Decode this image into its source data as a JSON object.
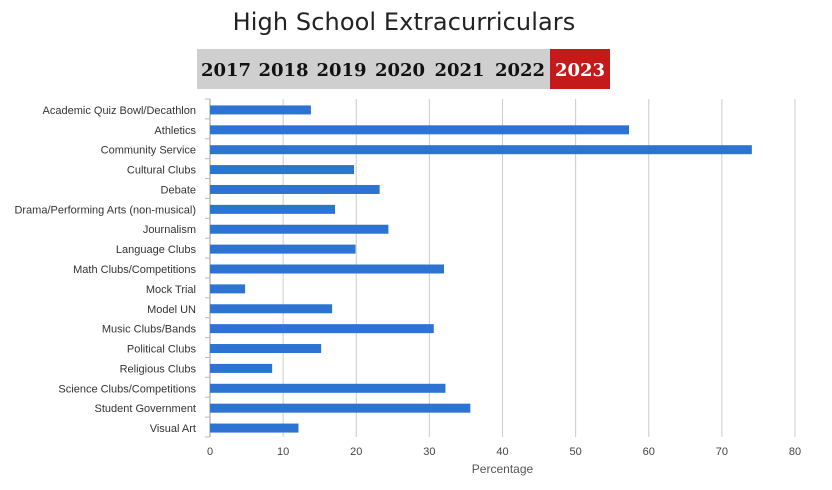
{
  "chart_data": {
    "type": "bar",
    "orientation": "horizontal",
    "title": "High School Extracurriculars",
    "xlabel": "Percentage",
    "ylabel": "",
    "xlim": [
      0,
      80
    ],
    "xticks": [
      0,
      10,
      20,
      30,
      40,
      50,
      60,
      70,
      80
    ],
    "grid": "vertical",
    "legend": "none",
    "bar_color": "#2c73d2",
    "categories": [
      "Academic Quiz Bowl/Decathlon",
      "Athletics",
      "Community Service",
      "Cultural Clubs",
      "Debate",
      "Drama/Performing Arts (non-musical)",
      "Journalism",
      "Language Clubs",
      "Math Clubs/Competitions",
      "Mock Trial",
      "Model UN",
      "Music Clubs/Bands",
      "Political Clubs",
      "Religious Clubs",
      "Science Clubs/Competitions",
      "Student Government",
      "Visual Art"
    ],
    "values": [
      13.8,
      57.3,
      74.1,
      19.7,
      23.2,
      17.1,
      24.4,
      19.9,
      32.0,
      4.8,
      16.7,
      30.6,
      15.2,
      8.5,
      32.2,
      35.6,
      12.1
    ]
  },
  "year_selector": {
    "years": [
      "2017",
      "2018",
      "2019",
      "2020",
      "2021",
      "2022",
      "2023"
    ],
    "selected": "2023",
    "inactive_bg": "#cfcfcf",
    "active_bg": "#c41a1a"
  }
}
